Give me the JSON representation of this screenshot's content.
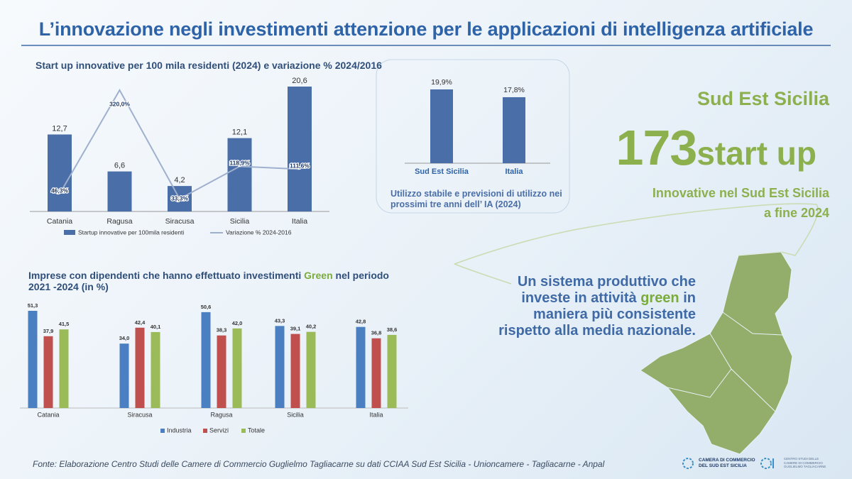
{
  "header": {
    "title": "L’innovazione negli investimenti attenzione per le applicazioni di intelligenza artificiale"
  },
  "chart_data": [
    {
      "type": "combo",
      "title": "Start up innovative per 100 mila residenti (2024) e variazione % 2024/2016",
      "categories": [
        "Catania",
        "Ragusa",
        "Siracusa",
        "Sicilia",
        "Italia"
      ],
      "series": [
        {
          "name": "Startup innovative per 100mila residenti",
          "type": "bar",
          "color": "#4a6ea8",
          "values": [
            12.7,
            6.6,
            4.2,
            12.1,
            20.6
          ],
          "value_labels": [
            "12,7",
            "6,6",
            "4,2",
            "12,1",
            "20,6"
          ]
        },
        {
          "name": "Variazione % 2024-2016",
          "type": "line",
          "axis": "y2",
          "color": "#9fb0cf",
          "values": [
            46.3,
            320.0,
            33.3,
            118.9,
            111.6
          ],
          "value_labels": [
            "46,3%",
            "320,0%",
            "33,3%",
            "118,9%",
            "111,6%"
          ]
        }
      ]
    },
    {
      "type": "bar",
      "title": "Utilizzo stabile e previsioni di utilizzo nei prossimi tre anni dell’ IA (2024)",
      "categories": [
        "Sud Est Sicilia",
        "Italia"
      ],
      "color": "#4a6ea8",
      "values": [
        19.9,
        17.8
      ],
      "value_labels": [
        "19,9%",
        "17,8%"
      ]
    },
    {
      "type": "grouped-bar",
      "title": [
        "Imprese con dipendenti che hanno effettuato investimenti",
        "Green",
        "nel periodo 2021 -2024 (in %)"
      ],
      "categories": [
        "Catania",
        "Siracusa",
        "Ragusa",
        "Sicilia",
        "Italia"
      ],
      "series": [
        {
          "name": "Industria",
          "color": "#4a7fc1",
          "values": [
            51.3,
            34.0,
            50.6,
            43.3,
            42.8
          ],
          "value_labels": [
            "51,3",
            "34,0",
            "50,6",
            "43,3",
            "42,8"
          ]
        },
        {
          "name": "Servizi",
          "color": "#c0504d",
          "values": [
            37.9,
            42.4,
            38.3,
            39.1,
            36.8
          ],
          "value_labels": [
            "37,9",
            "42,4",
            "38,3",
            "39,1",
            "36,8"
          ]
        },
        {
          "name": "Totale",
          "color": "#9bbb59",
          "values": [
            41.5,
            40.1,
            42.0,
            40.2,
            38.6
          ],
          "value_labels": [
            "41,5",
            "40,1",
            "42,0",
            "40,2",
            "38,6"
          ]
        }
      ]
    }
  ],
  "highlight": {
    "region": "Sud Est Sicilia",
    "number": "173",
    "unit": "start up",
    "caption": [
      "Innovative nel Sud Est Sicilia",
      "a fine 2024"
    ]
  },
  "message": [
    [
      "Un sistema produttivo che"
    ],
    [
      "investe in attività",
      "green",
      "in"
    ],
    [
      "maniera più consistente"
    ],
    [
      "rispetto alla media nazionale."
    ]
  ],
  "logos": [
    [
      "CAMERA DI COMMERCIO",
      "DEL SUD EST SICILIA"
    ],
    [
      "CENTRO STUDI DELLE",
      "CAMERE DI COMMERCIO",
      "GUGLIELMO TAGLIACARNE"
    ]
  ],
  "footer": "Fonte: Elaborazione Centro Studi delle Camere di Commercio Guglielmo Tagliacarne su dati CCIAA Sud Est Sicilia - Unioncamere - Tagliacarne - Anpal"
}
